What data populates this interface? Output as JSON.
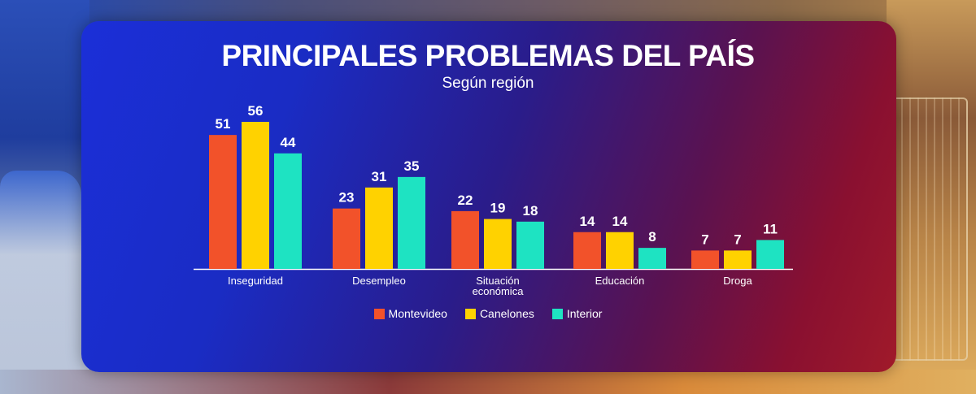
{
  "header": {
    "title": "PRINCIPALES PROBLEMAS DEL PAÍS",
    "subtitle": "Según región"
  },
  "colors": {
    "montevideo": "#f2522a",
    "canelones": "#ffd200",
    "interior": "#1ee3c2"
  },
  "chart_data": {
    "type": "bar",
    "title": "PRINCIPALES PROBLEMAS DEL PAÍS",
    "subtitle": "Según región",
    "categories": [
      [
        "Inseguridad"
      ],
      [
        "Desempleo"
      ],
      [
        "Situación",
        "económica"
      ],
      [
        "Educación"
      ],
      [
        "Droga"
      ]
    ],
    "series": [
      {
        "name": "Montevideo",
        "color": "#f2522a",
        "values": [
          51,
          23,
          22,
          14,
          7
        ]
      },
      {
        "name": "Canelones",
        "color": "#ffd200",
        "values": [
          56,
          31,
          19,
          14,
          7
        ]
      },
      {
        "name": "Interior",
        "color": "#1ee3c2",
        "values": [
          44,
          35,
          18,
          8,
          11
        ]
      }
    ],
    "ylim": [
      0,
      56
    ],
    "grid": false,
    "legend": "bottom-center",
    "xlabel": "",
    "ylabel": ""
  }
}
